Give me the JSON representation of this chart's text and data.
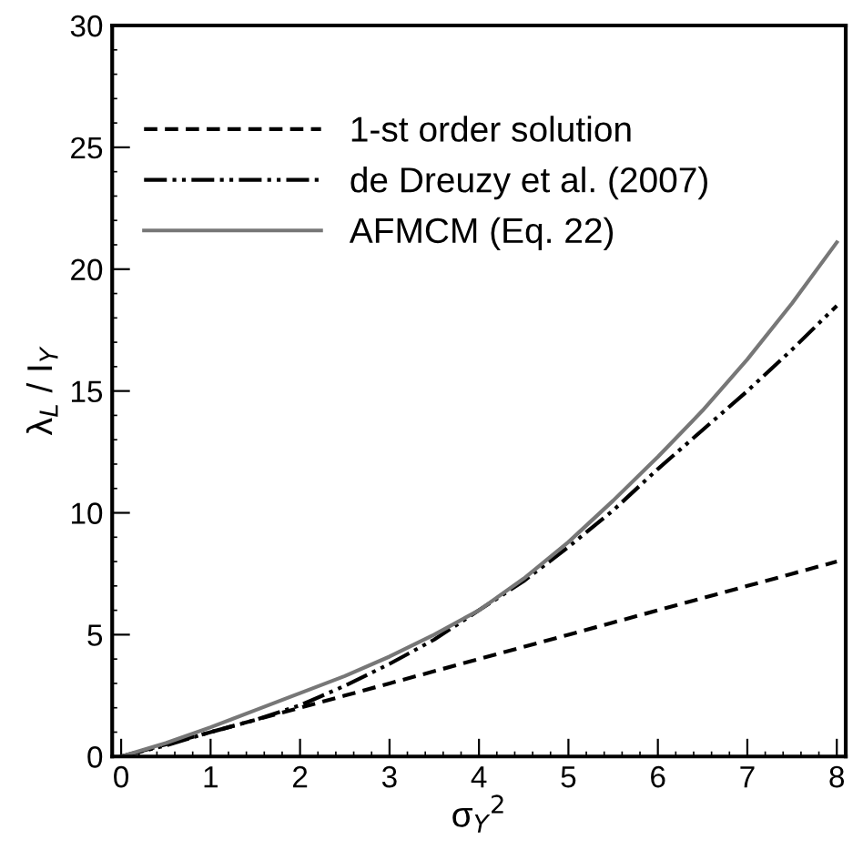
{
  "chart_data": {
    "type": "line",
    "xlabel": "σ$_{Y}$$^{2}$",
    "ylabel": "λ$_{L}$ / I$_{Y}$",
    "xlim": [
      -0.1,
      8.1
    ],
    "xticks": [
      0,
      1,
      2,
      3,
      4,
      5,
      6,
      7,
      8
    ],
    "ylim": [
      0,
      30
    ],
    "yticks": [
      0,
      5,
      10,
      15,
      20,
      25,
      30
    ],
    "x": [
      0,
      0.5,
      1,
      1.5,
      2,
      2.5,
      3,
      3.5,
      4,
      4.5,
      5,
      5.5,
      6,
      6.5,
      7,
      7.5,
      8
    ],
    "series": [
      {
        "name": "1-st order solution",
        "color": "#000000",
        "line_style": "dashed",
        "values": [
          0,
          0.5,
          1,
          1.5,
          2,
          2.5,
          3,
          3.5,
          4,
          4.5,
          5,
          5.5,
          6,
          6.5,
          7,
          7.5,
          8
        ]
      },
      {
        "name": "de Dreuzy et al. (2007)",
        "color": "#000000",
        "line_style": "dashdot",
        "values": [
          0,
          0.45,
          1.0,
          1.5,
          2.1,
          2.9,
          3.8,
          4.8,
          6.0,
          7.2,
          8.6,
          10.1,
          11.8,
          13.4,
          15.0,
          16.7,
          18.5
        ]
      },
      {
        "name": "AFMCM (Eq. 22)",
        "color": "#777777",
        "line_style": "solid",
        "values": [
          0,
          0.55,
          1.2,
          1.9,
          2.6,
          3.3,
          4.1,
          5.0,
          6.0,
          7.3,
          8.8,
          10.5,
          12.3,
          14.2,
          16.3,
          18.6,
          21.1
        ]
      }
    ],
    "legend": "top left",
    "grid": false,
    "marker": "none"
  }
}
